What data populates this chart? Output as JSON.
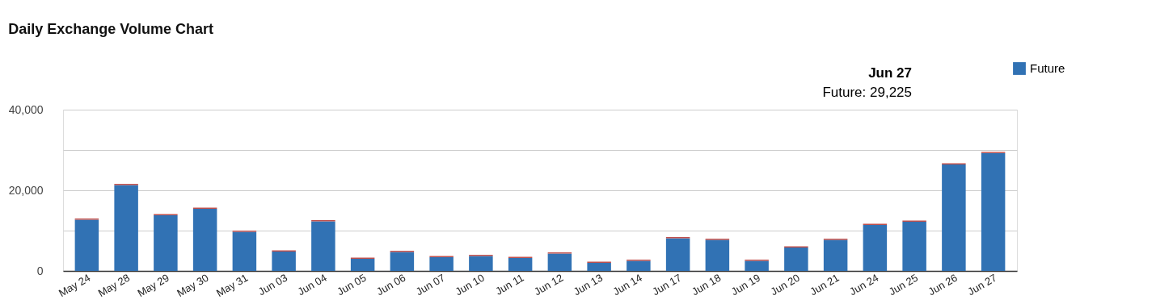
{
  "chart_data": {
    "type": "bar",
    "title": "Daily Exchange Volume Chart",
    "categories": [
      "May 24",
      "May 28",
      "May 29",
      "May 30",
      "May 31",
      "Jun 03",
      "Jun 04",
      "Jun 05",
      "Jun 06",
      "Jun 07",
      "Jun 10",
      "Jun 11",
      "Jun 12",
      "Jun 13",
      "Jun 14",
      "Jun 17",
      "Jun 18",
      "Jun 19",
      "Jun 20",
      "Jun 21",
      "Jun 24",
      "Jun 25",
      "Jun 26",
      "Jun 27"
    ],
    "stacked": true,
    "series": [
      {
        "name": "Future",
        "color": "#3172b4",
        "values": [
          12700,
          21300,
          13800,
          15400,
          9700,
          4800,
          12300,
          3000,
          4700,
          3400,
          3700,
          3200,
          4300,
          2000,
          2500,
          8100,
          7700,
          2500,
          5800,
          7700,
          11400,
          12200,
          26400,
          29225
        ]
      },
      {
        "color": "#c0504d",
        "values": [
          300,
          300,
          300,
          300,
          300,
          300,
          300,
          300,
          300,
          300,
          300,
          300,
          300,
          300,
          300,
          300,
          300,
          300,
          300,
          300,
          300,
          300,
          300,
          300
        ]
      }
    ],
    "ylim": [
      0,
      40000
    ],
    "yticks": [
      {
        "value": 0,
        "label": "0"
      },
      {
        "value": 10000,
        "label": null
      },
      {
        "value": 20000,
        "label": "20,000"
      },
      {
        "value": 30000,
        "label": null
      },
      {
        "value": 40000,
        "label": "40,000"
      }
    ],
    "grid": "y",
    "legend": "top right",
    "annotations": [
      "Jun 27",
      "Future: 29,225"
    ]
  }
}
